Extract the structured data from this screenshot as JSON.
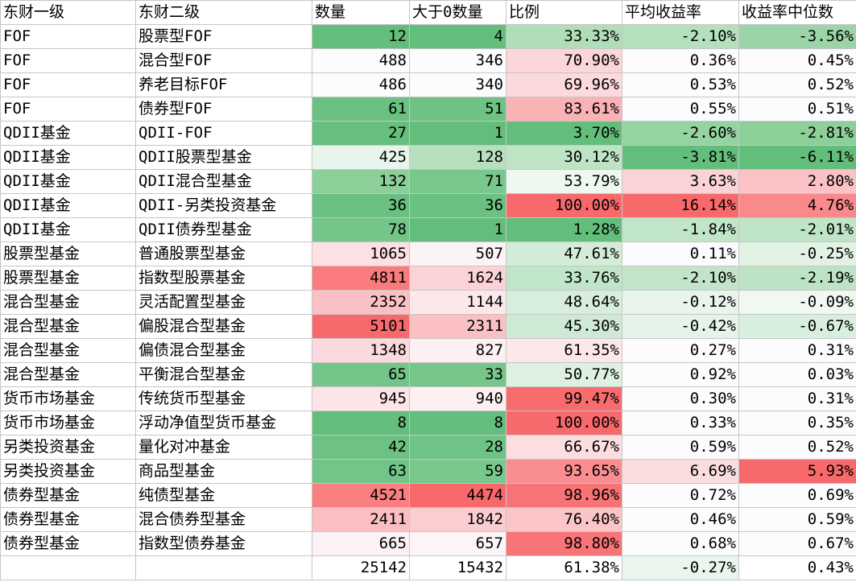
{
  "headers": [
    "东财一级",
    "东财二级",
    "数量",
    "大于0数量",
    "比例",
    "平均收益率",
    "收益率中位数"
  ],
  "rows": [
    [
      "FOF",
      "股票型FOF",
      "12",
      "4",
      "33.33%",
      "-2.10%",
      "-3.56%"
    ],
    [
      "FOF",
      "混合型FOF",
      "488",
      "346",
      "70.90%",
      "0.36%",
      "0.45%"
    ],
    [
      "FOF",
      "养老目标FOF",
      "486",
      "340",
      "69.96%",
      "0.53%",
      "0.52%"
    ],
    [
      "FOF",
      "债券型FOF",
      "61",
      "51",
      "83.61%",
      "0.55%",
      "0.51%"
    ],
    [
      "QDII基金",
      "QDII-FOF",
      "27",
      "1",
      "3.70%",
      "-2.60%",
      "-2.81%"
    ],
    [
      "QDII基金",
      "QDII股票型基金",
      "425",
      "128",
      "30.12%",
      "-3.81%",
      "-6.11%"
    ],
    [
      "QDII基金",
      "QDII混合型基金",
      "132",
      "71",
      "53.79%",
      "3.63%",
      "2.80%"
    ],
    [
      "QDII基金",
      "QDII-另类投资基金",
      "36",
      "36",
      "100.00%",
      "16.14%",
      "4.76%"
    ],
    [
      "QDII基金",
      "QDII债券型基金",
      "78",
      "1",
      "1.28%",
      "-1.84%",
      "-2.01%"
    ],
    [
      "股票型基金",
      "普通股票型基金",
      "1065",
      "507",
      "47.61%",
      "0.11%",
      "-0.25%"
    ],
    [
      "股票型基金",
      "指数型股票基金",
      "4811",
      "1624",
      "33.76%",
      "-2.10%",
      "-2.19%"
    ],
    [
      "混合型基金",
      "灵活配置型基金",
      "2352",
      "1144",
      "48.64%",
      "-0.12%",
      "-0.09%"
    ],
    [
      "混合型基金",
      "偏股混合型基金",
      "5101",
      "2311",
      "45.30%",
      "-0.42%",
      "-0.67%"
    ],
    [
      "混合型基金",
      "偏债混合型基金",
      "1348",
      "827",
      "61.35%",
      "0.27%",
      "0.31%"
    ],
    [
      "混合型基金",
      "平衡混合型基金",
      "65",
      "33",
      "50.77%",
      "0.92%",
      "0.03%"
    ],
    [
      "货币市场基金",
      "传统货币型基金",
      "945",
      "940",
      "99.47%",
      "0.30%",
      "0.31%"
    ],
    [
      "货币市场基金",
      "浮动净值型货币基金",
      "8",
      "8",
      "100.00%",
      "0.33%",
      "0.35%"
    ],
    [
      "另类投资基金",
      "量化对冲基金",
      "42",
      "28",
      "66.67%",
      "0.59%",
      "0.52%"
    ],
    [
      "另类投资基金",
      "商品型基金",
      "63",
      "59",
      "93.65%",
      "6.69%",
      "5.93%"
    ],
    [
      "债券型基金",
      "纯债型基金",
      "4521",
      "4474",
      "98.96%",
      "0.72%",
      "0.69%"
    ],
    [
      "债券型基金",
      "混合债券型基金",
      "2411",
      "1842",
      "76.40%",
      "0.46%",
      "0.59%"
    ],
    [
      "债券型基金",
      "指数型债券基金",
      "665",
      "657",
      "98.80%",
      "0.68%",
      "0.67%"
    ]
  ],
  "total_row": [
    "",
    "",
    "25142",
    "15432",
    "61.38%",
    "-0.27%",
    "0.43%"
  ],
  "colors": {
    "header_bg": "#ffffff",
    "border": "#c6c6c6",
    "row_fills": [
      [
        "#ffffff",
        "#ffffff",
        "#63be7b",
        "#63be7b",
        "#b0deb9",
        "#b5e0bd",
        "#9bd5a7"
      ],
      [
        "#ffffff",
        "#ffffff",
        "#fcfcff",
        "#fcfcff",
        "#fbd5d8",
        "#fcfcff",
        "#fcfcff"
      ],
      [
        "#ffffff",
        "#ffffff",
        "#fcfcff",
        "#fcfcff",
        "#fbd9dc",
        "#fcfcff",
        "#fcfcff"
      ],
      [
        "#ffffff",
        "#ffffff",
        "#6bc182",
        "#6dc284",
        "#fab2b5",
        "#fcfcff",
        "#fcfcff"
      ],
      [
        "#ffffff",
        "#ffffff",
        "#67bf7e",
        "#63be7b",
        "#63be7b",
        "#96d3a2",
        "#8ccf99"
      ],
      [
        "#ffffff",
        "#ffffff",
        "#e9f5ec",
        "#b6e0be",
        "#bee4c5",
        "#63be7b",
        "#63be7b"
      ],
      [
        "#ffffff",
        "#ffffff",
        "#8ccf99",
        "#78c78d",
        "#eef8f0",
        "#fbd3d6",
        "#fbc2c5"
      ],
      [
        "#ffffff",
        "#ffffff",
        "#69c080",
        "#6ac181",
        "#f8696b",
        "#f8696b",
        "#f9898b"
      ],
      [
        "#ffffff",
        "#ffffff",
        "#73c589",
        "#63be7b",
        "#63be7b",
        "#c0e5c7",
        "#bfe4c6"
      ],
      [
        "#ffffff",
        "#ffffff",
        "#fce0e3",
        "#fcf3f6",
        "#d3ecd8",
        "#fcfcff",
        "#e2f3e5"
      ],
      [
        "#ffffff",
        "#ffffff",
        "#f97b7d",
        "#fbd2d5",
        "#c1e5c8",
        "#c2e5c9",
        "#bde3c4"
      ],
      [
        "#ffffff",
        "#ffffff",
        "#fbc0c3",
        "#fce8eb",
        "#d6eedb",
        "#e9f5ec",
        "#eff8f1"
      ],
      [
        "#ffffff",
        "#ffffff",
        "#f8696b",
        "#fbc0c3",
        "#ceead4",
        "#e5f4e8",
        "#d9efdd"
      ],
      [
        "#ffffff",
        "#ffffff",
        "#fcd9dc",
        "#fcf0f3",
        "#fce8eb",
        "#fcfcff",
        "#fcfcff"
      ],
      [
        "#ffffff",
        "#ffffff",
        "#73c589",
        "#76c68b",
        "#ddf1e1",
        "#fcfcff",
        "#fcfcff"
      ],
      [
        "#ffffff",
        "#ffffff",
        "#fce4e7",
        "#fcf0f3",
        "#f86c6e",
        "#fcfcff",
        "#fcfcff"
      ],
      [
        "#ffffff",
        "#ffffff",
        "#63be7b",
        "#64bf7c",
        "#f8696b",
        "#fcfcff",
        "#fcfcff"
      ],
      [
        "#ffffff",
        "#ffffff",
        "#6cc183",
        "#70c386",
        "#fcdde0",
        "#fcfcff",
        "#fcfcff"
      ],
      [
        "#ffffff",
        "#ffffff",
        "#72c488",
        "#78c78d",
        "#f98d90",
        "#fbdcdf",
        "#f8696b"
      ],
      [
        "#ffffff",
        "#ffffff",
        "#f97f81",
        "#f8696b",
        "#f87375",
        "#fcfcff",
        "#fcfcff"
      ],
      [
        "#ffffff",
        "#ffffff",
        "#fbbfc2",
        "#fbcdd0",
        "#fbc5c8",
        "#fcfcff",
        "#fcfcff"
      ],
      [
        "#ffffff",
        "#ffffff",
        "#fcf2f5",
        "#fcf4f7",
        "#f87476",
        "#fcfcff",
        "#fcfcff"
      ]
    ],
    "total_fills": [
      "#ffffff",
      "#ffffff",
      "#ffffff",
      "#ffffff",
      "#ffffff",
      "#eaf6ed",
      "#ffffff"
    ]
  }
}
